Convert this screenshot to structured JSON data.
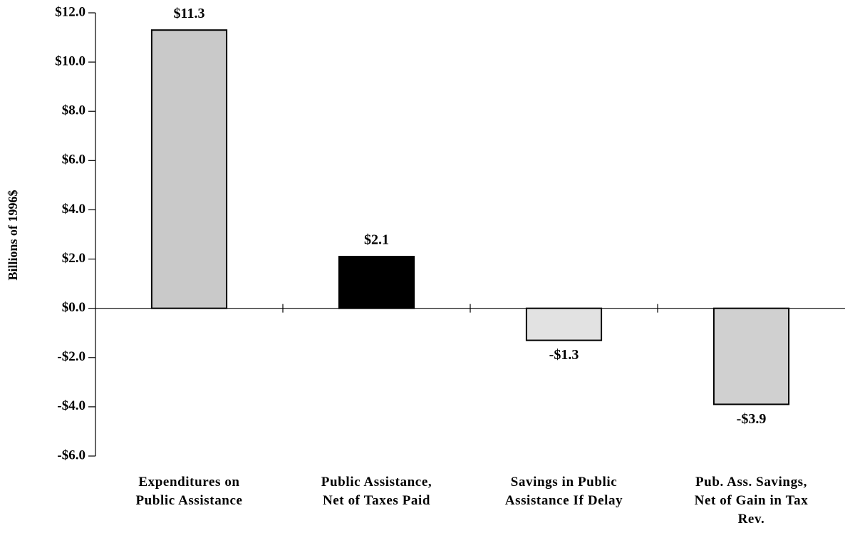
{
  "chart_data": {
    "type": "bar",
    "y_label": "Billions of 1996$",
    "categories": [
      "Expenditures on\nPublic Assistance",
      "Public Assistance,\nNet of Taxes Paid",
      "Savings in Public\nAssistance If Delay",
      "Pub. Ass. Savings,\nNet of Gain in Tax\nRev."
    ],
    "values": [
      11.3,
      2.1,
      -1.3,
      -3.9
    ],
    "value_labels": [
      "$11.3",
      "$2.1",
      "-$1.3",
      "-$3.9"
    ],
    "colors": [
      "#c9c9c9",
      "#000000",
      "#e2e2e2",
      "#d0d0d0"
    ],
    "ylim": [
      -6,
      12
    ],
    "yticks": [
      {
        "value": -6,
        "label": "-$6.0"
      },
      {
        "value": -4,
        "label": "-$4.0"
      },
      {
        "value": -2,
        "label": "-$2.0"
      },
      {
        "value": 0,
        "label": "$0.0"
      },
      {
        "value": 2,
        "label": "$2.0"
      },
      {
        "value": 4,
        "label": "$4.0"
      },
      {
        "value": 6,
        "label": "$6.0"
      },
      {
        "value": 8,
        "label": "$8.0"
      },
      {
        "value": 10,
        "label": "$10.0"
      },
      {
        "value": 12,
        "label": "$12.0"
      }
    ]
  }
}
